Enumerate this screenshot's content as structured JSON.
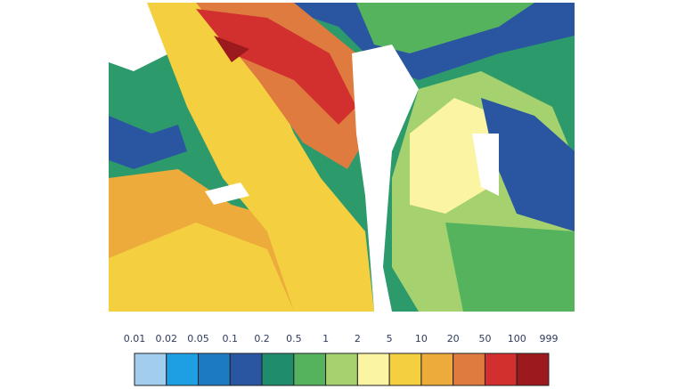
{
  "colorbar": {
    "levels": [
      0.01,
      0.02,
      0.05,
      0.1,
      0.2,
      0.5,
      1,
      2,
      5,
      10,
      20,
      50,
      100,
      999
    ],
    "colors": [
      "#a3cdee",
      "#1e9ee3",
      "#1c7ac2",
      "#2a56a1",
      "#1f8c6c",
      "#55b35e",
      "#a6d16f",
      "#fbf4a3",
      "#f4d040",
      "#edab3b",
      "#df7b3f",
      "#d1302f",
      "#9c1a1e"
    ]
  }
}
